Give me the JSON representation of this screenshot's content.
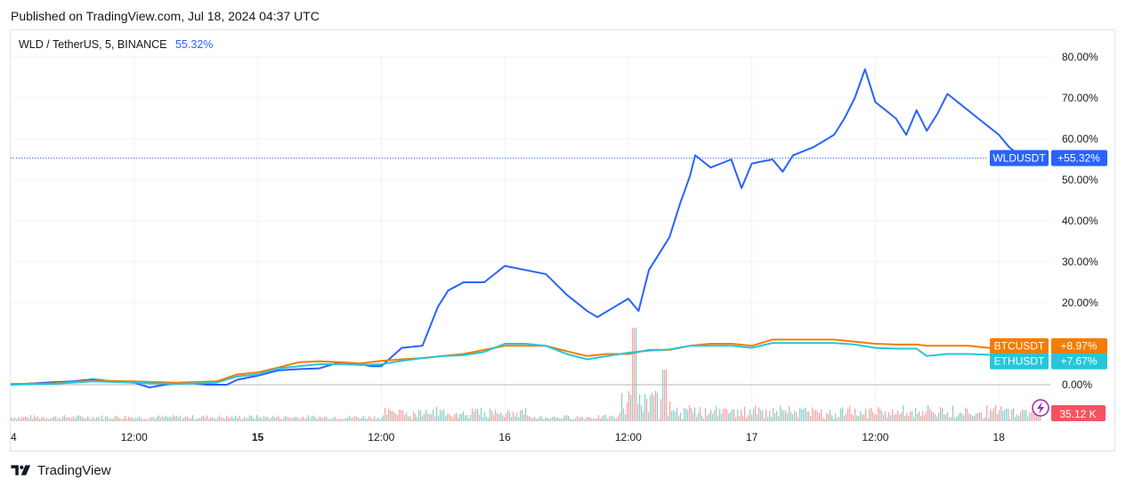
{
  "header": {
    "published": "Published on TradingView.com, Jul 18, 2024 04:37 UTC"
  },
  "legend": {
    "title": "WLD / TetherUS, 5, BINANCE",
    "change": "55.32%"
  },
  "brand": {
    "name": "TradingView"
  },
  "colors": {
    "wld": "#2962ff",
    "btc": "#f57c00",
    "eth": "#26c6da",
    "zero_line": "#b2b5be",
    "grid": "#f0f3fa",
    "vol_up": "#26a69a",
    "vol_down": "#ef5350"
  },
  "chart_data": {
    "type": "line",
    "ylim": [
      -8,
      84
    ],
    "y_ticks": [
      {
        "value": 80,
        "label": "80.00%"
      },
      {
        "value": 70,
        "label": "70.00%"
      },
      {
        "value": 60,
        "label": "60.00%"
      },
      {
        "value": 50,
        "label": "50.00%"
      },
      {
        "value": 40,
        "label": "40.00%"
      },
      {
        "value": 30,
        "label": "30.00%"
      },
      {
        "value": 20,
        "label": "20.00%"
      },
      {
        "value": 0,
        "label": "0.00%"
      }
    ],
    "x_ticks": [
      {
        "t": 0,
        "label": "4",
        "bold": false
      },
      {
        "t": 12,
        "label": "12:00",
        "bold": false
      },
      {
        "t": 24,
        "label": "15",
        "bold": true
      },
      {
        "t": 36,
        "label": "12:00",
        "bold": false
      },
      {
        "t": 48,
        "label": "16",
        "bold": false
      },
      {
        "t": 60,
        "label": "12:00",
        "bold": false
      },
      {
        "t": 72,
        "label": "17",
        "bold": false
      },
      {
        "t": 84,
        "label": "12:00",
        "bold": false
      },
      {
        "t": 96,
        "label": "18",
        "bold": false
      }
    ],
    "series": [
      {
        "name": "WLDUSDT",
        "color": "#2962ff",
        "last_label": "+55.32%",
        "last": 55.32,
        "points": [
          [
            0,
            0
          ],
          [
            2,
            0.3
          ],
          [
            4,
            0.6
          ],
          [
            6,
            0.8
          ],
          [
            8,
            1.3
          ],
          [
            10,
            0.8
          ],
          [
            12,
            0.5
          ],
          [
            13.5,
            -0.7
          ],
          [
            15,
            0
          ],
          [
            17,
            0.5
          ],
          [
            19,
            0
          ],
          [
            21,
            0
          ],
          [
            22,
            1.2
          ],
          [
            24,
            2.2
          ],
          [
            26,
            3.5
          ],
          [
            28,
            3.8
          ],
          [
            30,
            4
          ],
          [
            32,
            5.5
          ],
          [
            34,
            5
          ],
          [
            35,
            4.5
          ],
          [
            36,
            4.5
          ],
          [
            38,
            9
          ],
          [
            40,
            9.5
          ],
          [
            41.5,
            19
          ],
          [
            42.5,
            23
          ],
          [
            44,
            25
          ],
          [
            46,
            25
          ],
          [
            48,
            29
          ],
          [
            50,
            28
          ],
          [
            52,
            27
          ],
          [
            54,
            22
          ],
          [
            56,
            18
          ],
          [
            57,
            16.5
          ],
          [
            58,
            18
          ],
          [
            60,
            21
          ],
          [
            61,
            18
          ],
          [
            62,
            28
          ],
          [
            63,
            32
          ],
          [
            64,
            36
          ],
          [
            65,
            44
          ],
          [
            66,
            51
          ],
          [
            66.5,
            56
          ],
          [
            68,
            53
          ],
          [
            70,
            55
          ],
          [
            71,
            48
          ],
          [
            72,
            54
          ],
          [
            74,
            55
          ],
          [
            75,
            52
          ],
          [
            76,
            56
          ],
          [
            78,
            58
          ],
          [
            80,
            61
          ],
          [
            81,
            65
          ],
          [
            82,
            70
          ],
          [
            83,
            77
          ],
          [
            84,
            69
          ],
          [
            86,
            65
          ],
          [
            87,
            61
          ],
          [
            88,
            67
          ],
          [
            89,
            62
          ],
          [
            90,
            66
          ],
          [
            91,
            71
          ],
          [
            93,
            67
          ],
          [
            94,
            65
          ],
          [
            95,
            63
          ],
          [
            96,
            61
          ],
          [
            97,
            58
          ],
          [
            98,
            56
          ],
          [
            99.5,
            55.32
          ]
        ]
      },
      {
        "name": "BTCUSDT",
        "color": "#f57c00",
        "last_label": "+8.97%",
        "last": 8.97,
        "points": [
          [
            0,
            0.2
          ],
          [
            4,
            0.3
          ],
          [
            8,
            1
          ],
          [
            12,
            0.8
          ],
          [
            16,
            0.5
          ],
          [
            20,
            0.8
          ],
          [
            22,
            2.5
          ],
          [
            24,
            3
          ],
          [
            26,
            4.2
          ],
          [
            28,
            5.5
          ],
          [
            30,
            5.7
          ],
          [
            32,
            5.5
          ],
          [
            34,
            5.2
          ],
          [
            36,
            5.8
          ],
          [
            38,
            6.2
          ],
          [
            40,
            6.5
          ],
          [
            42,
            7
          ],
          [
            44,
            7.5
          ],
          [
            46,
            8.5
          ],
          [
            48,
            9.5
          ],
          [
            50,
            9.5
          ],
          [
            52,
            9.5
          ],
          [
            54,
            8.2
          ],
          [
            56,
            7
          ],
          [
            58,
            7.5
          ],
          [
            60,
            7.5
          ],
          [
            62,
            8.5
          ],
          [
            64,
            8.5
          ],
          [
            66,
            9.5
          ],
          [
            68,
            10
          ],
          [
            70,
            10
          ],
          [
            72,
            9.5
          ],
          [
            74,
            11
          ],
          [
            76,
            11
          ],
          [
            78,
            11
          ],
          [
            80,
            11
          ],
          [
            82,
            10.5
          ],
          [
            84,
            10
          ],
          [
            86,
            9.8
          ],
          [
            88,
            9.8
          ],
          [
            89,
            9.5
          ],
          [
            91,
            9.5
          ],
          [
            93,
            9.5
          ],
          [
            95,
            9
          ],
          [
            97,
            9
          ],
          [
            99.5,
            8.97
          ]
        ]
      },
      {
        "name": "ETHUSDT",
        "color": "#26c6da",
        "last_label": "+7.67%",
        "last": 7.67,
        "points": [
          [
            0,
            0
          ],
          [
            4,
            0.2
          ],
          [
            8,
            0.8
          ],
          [
            12,
            0.5
          ],
          [
            16,
            0.2
          ],
          [
            20,
            0.5
          ],
          [
            22,
            2
          ],
          [
            24,
            2.5
          ],
          [
            26,
            4
          ],
          [
            28,
            4.5
          ],
          [
            30,
            5
          ],
          [
            32,
            5
          ],
          [
            34,
            4.8
          ],
          [
            36,
            5
          ],
          [
            38,
            5.8
          ],
          [
            40,
            6.5
          ],
          [
            42,
            7
          ],
          [
            44,
            7.2
          ],
          [
            46,
            8
          ],
          [
            48,
            10
          ],
          [
            50,
            10
          ],
          [
            52,
            9.5
          ],
          [
            54,
            7.5
          ],
          [
            56,
            6.2
          ],
          [
            58,
            7
          ],
          [
            60,
            7.8
          ],
          [
            62,
            8.3
          ],
          [
            64,
            8.6
          ],
          [
            66,
            9.5
          ],
          [
            68,
            9.5
          ],
          [
            70,
            9.5
          ],
          [
            72,
            9
          ],
          [
            74,
            10.2
          ],
          [
            76,
            10.2
          ],
          [
            78,
            10.2
          ],
          [
            80,
            10.2
          ],
          [
            82,
            9.8
          ],
          [
            84,
            9
          ],
          [
            86,
            8.8
          ],
          [
            88,
            8.8
          ],
          [
            89,
            7
          ],
          [
            91,
            7.5
          ],
          [
            93,
            7.5
          ],
          [
            95,
            7.3
          ],
          [
            97,
            7.2
          ],
          [
            99.5,
            7.67
          ]
        ]
      }
    ],
    "volume": {
      "last_label": "35.12 K"
    }
  }
}
